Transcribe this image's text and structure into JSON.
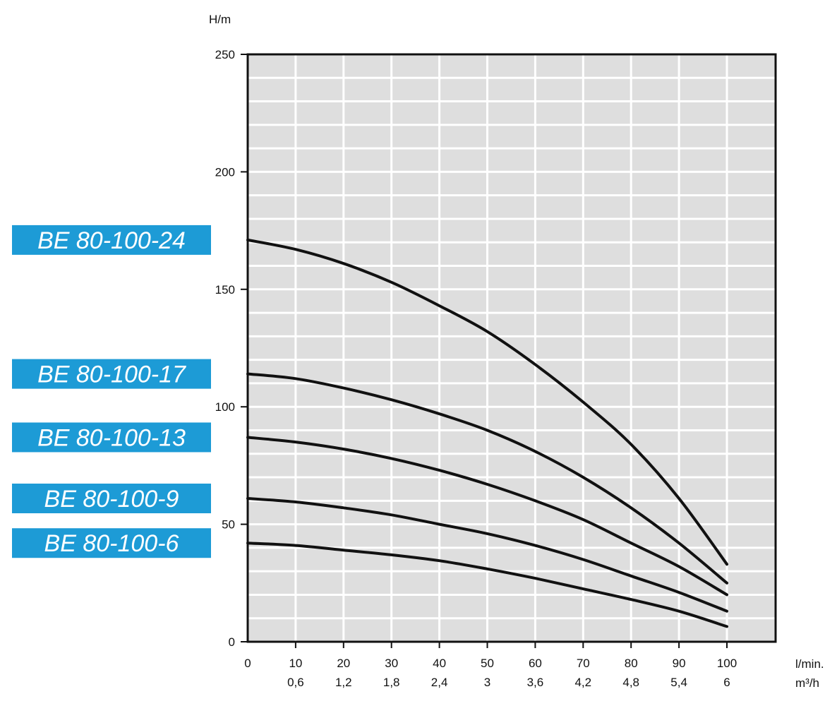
{
  "chart_data": {
    "type": "line",
    "ylabel": "H/m",
    "xlabel_primary": "l/min.",
    "xlabel_secondary": "m³/h",
    "xlim": [
      0,
      110
    ],
    "ylim": [
      0,
      250
    ],
    "y_ticks": [
      {
        "value": 0,
        "label": "0"
      },
      {
        "value": 50,
        "label": "50"
      },
      {
        "value": 100,
        "label": "100"
      },
      {
        "value": 150,
        "label": "150"
      },
      {
        "value": 200,
        "label": "200"
      },
      {
        "value": 250,
        "label": "250"
      }
    ],
    "x_ticks": [
      {
        "value": 0,
        "label": "0",
        "label2": ""
      },
      {
        "value": 10,
        "label": "10",
        "label2": "0,6"
      },
      {
        "value": 20,
        "label": "20",
        "label2": "1,2"
      },
      {
        "value": 30,
        "label": "30",
        "label2": "1,8"
      },
      {
        "value": 40,
        "label": "40",
        "label2": "2,4"
      },
      {
        "value": 50,
        "label": "50",
        "label2": "3"
      },
      {
        "value": 60,
        "label": "60",
        "label2": "3,6"
      },
      {
        "value": 70,
        "label": "70",
        "label2": "4,2"
      },
      {
        "value": 80,
        "label": "80",
        "label2": "4,8"
      },
      {
        "value": 90,
        "label": "90",
        "label2": "5,4"
      },
      {
        "value": 100,
        "label": "100",
        "label2": "6"
      }
    ],
    "grid": true,
    "background_color": "#dedede",
    "grid_color": "#ffffff",
    "line_color": "#111111",
    "legend_color": "#1d9bd6",
    "series": [
      {
        "name": "BE 80-100-24",
        "points": [
          [
            0,
            171
          ],
          [
            10,
            167
          ],
          [
            20,
            161
          ],
          [
            30,
            153
          ],
          [
            40,
            143
          ],
          [
            50,
            132
          ],
          [
            60,
            118
          ],
          [
            70,
            102
          ],
          [
            80,
            84
          ],
          [
            90,
            61
          ],
          [
            100,
            33
          ]
        ]
      },
      {
        "name": "BE 80-100-17",
        "points": [
          [
            0,
            114
          ],
          [
            10,
            112
          ],
          [
            20,
            108
          ],
          [
            30,
            103
          ],
          [
            40,
            97
          ],
          [
            50,
            90
          ],
          [
            60,
            81
          ],
          [
            70,
            70
          ],
          [
            80,
            57
          ],
          [
            90,
            42
          ],
          [
            100,
            25
          ]
        ]
      },
      {
        "name": "BE 80-100-13",
        "points": [
          [
            0,
            87
          ],
          [
            10,
            85
          ],
          [
            20,
            82
          ],
          [
            30,
            78
          ],
          [
            40,
            73
          ],
          [
            50,
            67
          ],
          [
            60,
            60
          ],
          [
            70,
            52
          ],
          [
            80,
            42
          ],
          [
            90,
            32
          ],
          [
            100,
            20
          ]
        ]
      },
      {
        "name": "BE 80-100-9",
        "points": [
          [
            0,
            61
          ],
          [
            10,
            59.5
          ],
          [
            20,
            57
          ],
          [
            30,
            54
          ],
          [
            40,
            50
          ],
          [
            50,
            46
          ],
          [
            60,
            41
          ],
          [
            70,
            35
          ],
          [
            80,
            28
          ],
          [
            90,
            21
          ],
          [
            100,
            13
          ]
        ]
      },
      {
        "name": "BE 80-100-6",
        "points": [
          [
            0,
            42
          ],
          [
            10,
            41
          ],
          [
            20,
            39
          ],
          [
            30,
            37
          ],
          [
            40,
            34.5
          ],
          [
            50,
            31
          ],
          [
            60,
            27
          ],
          [
            70,
            22.5
          ],
          [
            80,
            18
          ],
          [
            90,
            13
          ],
          [
            100,
            6.5
          ]
        ]
      }
    ]
  }
}
